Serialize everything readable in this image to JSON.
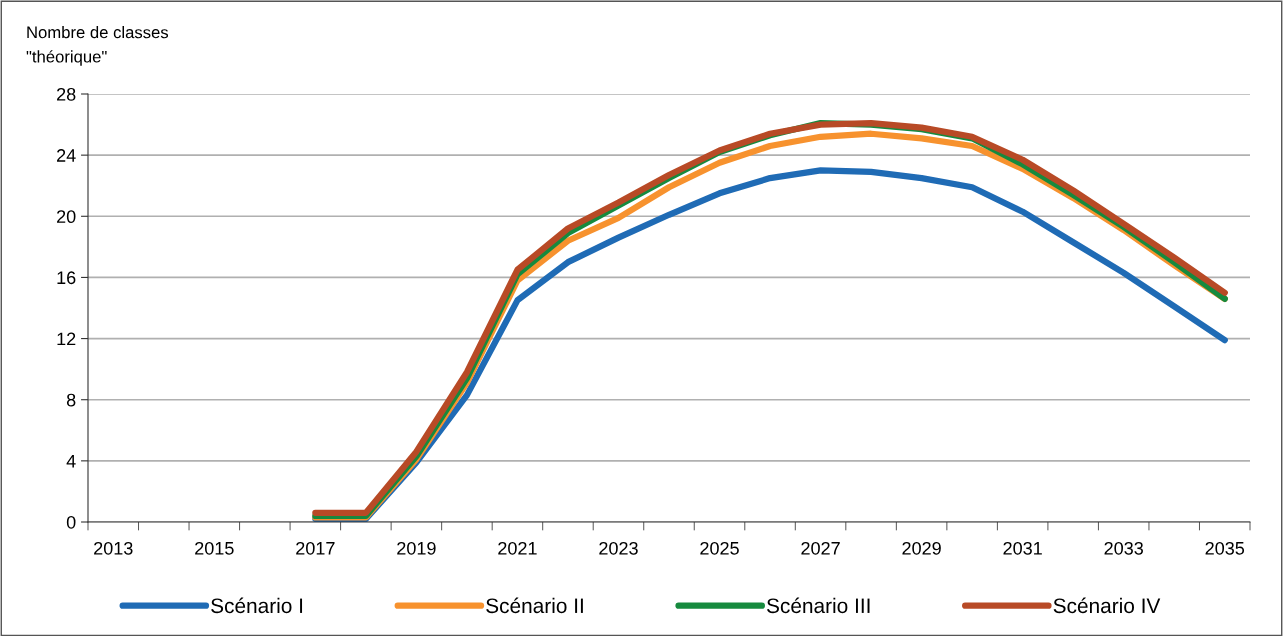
{
  "chart_data": {
    "type": "line",
    "ylabel": "Nombre de classes\n\"théorique\"",
    "categories": [
      "2013",
      null,
      "2015",
      null,
      "2017",
      null,
      "2019",
      null,
      "2021",
      null,
      "2023",
      null,
      "2025",
      null,
      "2027",
      null,
      "2029",
      null,
      "2031",
      null,
      "2033",
      null,
      "2035"
    ],
    "ylim": [
      0,
      28
    ],
    "yticks": [
      0,
      4,
      8,
      12,
      16,
      20,
      24,
      28
    ],
    "grid": "y",
    "legend": "bottom",
    "marker": "none",
    "line_style": "solid",
    "series": [
      {
        "name": "Scénario I",
        "color": "#1f6bb5",
        "values": [
          null,
          null,
          null,
          null,
          0.2,
          0.2,
          3.9,
          8.3,
          14.5,
          17.0,
          18.6,
          20.1,
          21.5,
          22.5,
          23.0,
          22.9,
          22.5,
          21.9,
          20.3,
          18.3,
          16.3,
          14.1,
          11.9
        ]
      },
      {
        "name": "Scénario II",
        "color": "#f7922e",
        "values": [
          null,
          null,
          null,
          null,
          0.3,
          0.3,
          4.1,
          9.1,
          15.8,
          18.4,
          19.9,
          21.9,
          23.5,
          24.6,
          25.2,
          25.4,
          25.1,
          24.6,
          23.1,
          21.2,
          19.1,
          16.8,
          14.6
        ]
      },
      {
        "name": "Scénario III",
        "color": "#168a3e",
        "values": [
          null,
          null,
          null,
          null,
          0.4,
          0.4,
          4.3,
          9.4,
          16.2,
          18.9,
          20.7,
          22.5,
          24.2,
          25.3,
          26.1,
          26.0,
          25.7,
          25.1,
          23.4,
          21.4,
          19.3,
          17.0,
          14.6
        ]
      },
      {
        "name": "Scénario IV",
        "color": "#b84a26",
        "values": [
          null,
          null,
          null,
          null,
          0.6,
          0.6,
          4.6,
          9.8,
          16.5,
          19.2,
          20.9,
          22.7,
          24.3,
          25.4,
          26.0,
          26.1,
          25.8,
          25.2,
          23.7,
          21.7,
          19.5,
          17.3,
          15.0
        ]
      }
    ]
  }
}
